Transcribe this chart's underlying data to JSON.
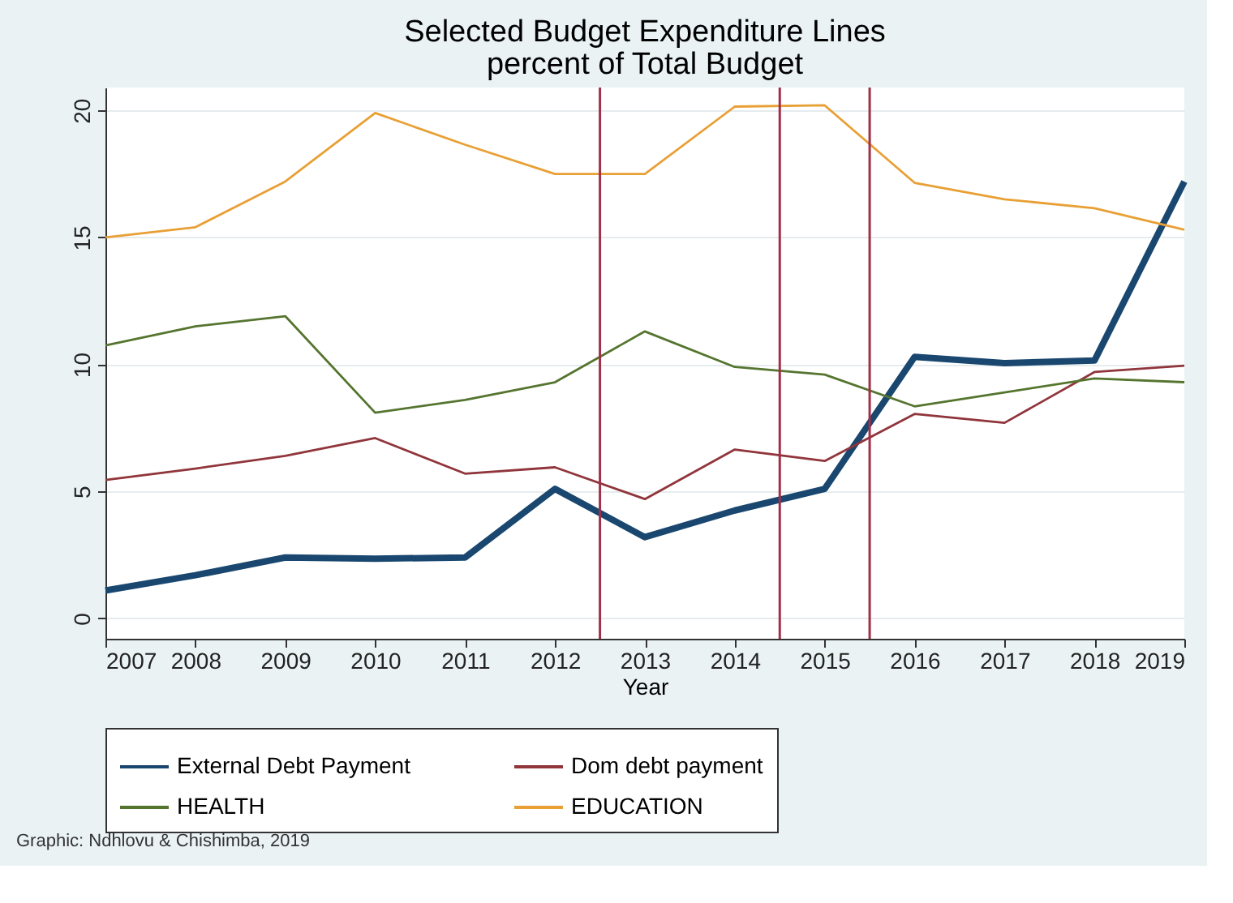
{
  "chart_data": {
    "type": "line",
    "title": "Selected Budget Expenditure Lines",
    "subtitle": "percent of Total Budget",
    "xlabel": "Year",
    "x": [
      2007,
      2008,
      2009,
      2010,
      2011,
      2012,
      2013,
      2014,
      2015,
      2016,
      2017,
      2018,
      2019
    ],
    "series": [
      {
        "name": "External Debt Payment",
        "color": "#1a476f",
        "values": [
          1.1,
          1.7,
          2.4,
          2.35,
          2.4,
          5.1,
          3.2,
          4.25,
          5.1,
          10.3,
          10.05,
          10.15,
          17.2
        ]
      },
      {
        "name": "Dom debt payment",
        "color": "#90353b",
        "values": [
          5.45,
          5.9,
          6.4,
          7.1,
          5.7,
          5.95,
          4.7,
          6.65,
          6.2,
          8.05,
          7.7,
          9.7,
          9.95
        ]
      },
      {
        "name": "HEALTH",
        "color": "#55752f",
        "values": [
          10.75,
          11.5,
          11.9,
          8.1,
          8.6,
          9.3,
          11.3,
          9.9,
          9.6,
          8.35,
          8.9,
          9.45,
          9.3
        ]
      },
      {
        "name": "EDUCATION",
        "color": "#e8a035",
        "values": [
          15.0,
          15.4,
          17.2,
          19.9,
          18.65,
          17.5,
          17.5,
          20.15,
          20.2,
          17.15,
          16.5,
          16.15,
          15.3
        ]
      }
    ],
    "xlim": [
      2007,
      2019
    ],
    "xticks": [
      2007,
      2008,
      2009,
      2010,
      2011,
      2012,
      2013,
      2014,
      2015,
      2016,
      2017,
      2018,
      2019
    ],
    "ylim": [
      -0.8,
      20.9
    ],
    "yticks": [
      0,
      5,
      10,
      15,
      20
    ],
    "ref_lines": [
      {
        "axis": "x",
        "value": 2012.5,
        "color": "#a0304a"
      },
      {
        "axis": "x",
        "value": 2014.5,
        "color": "#a0304a"
      },
      {
        "axis": "x",
        "value": 2015.5,
        "color": "#a0304a"
      }
    ],
    "grid": "y",
    "legend": "bottom",
    "annotations": [
      "Graphic: Ndhlovu & Chishimba, 2019"
    ]
  }
}
